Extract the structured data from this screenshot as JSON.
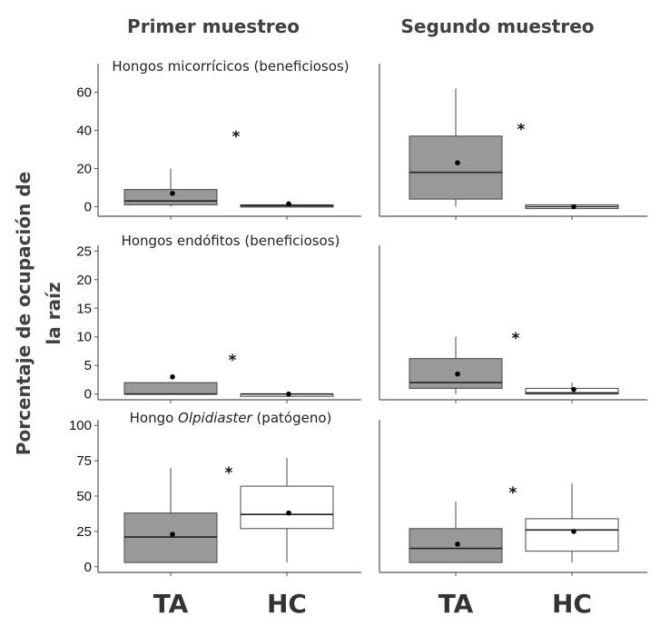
{
  "chart_data": {
    "type": "box",
    "column_titles": [
      "Primer muestreo",
      "Segundo muestreo"
    ],
    "ylabel": [
      "Porcentaje de ocupación de",
      "la raíz"
    ],
    "categories": [
      "TA",
      "HC"
    ],
    "colors": {
      "TA": "#999999",
      "HC": "#ffffff"
    },
    "panels": [
      {
        "title": [
          "Hongos micorrícicos (beneficiosos)"
        ],
        "sample": "Primer muestreo",
        "ylim": [
          -5,
          75
        ],
        "yticks": [
          0,
          20,
          40,
          60
        ],
        "significance": "*",
        "boxes": [
          {
            "group": "TA",
            "min": 0,
            "q1": 1,
            "median": 3,
            "q3": 9,
            "max": 20,
            "mean": 7
          },
          {
            "group": "HC",
            "min": 0,
            "q1": 0,
            "median": 0.5,
            "q3": 1,
            "max": 1,
            "mean": 1.5
          }
        ]
      },
      {
        "title": [],
        "sample": "Segundo muestreo",
        "ylim": [
          -5,
          75
        ],
        "significance": "*",
        "boxes": [
          {
            "group": "TA",
            "min": 0,
            "q1": 4,
            "median": 18,
            "q3": 37,
            "max": 62,
            "mean": 23
          },
          {
            "group": "HC",
            "min": -1,
            "q1": -1,
            "median": 0,
            "q3": 1,
            "max": 1,
            "mean": 0
          }
        ]
      },
      {
        "title": [
          "Hongos endófitos (beneficiosos)"
        ],
        "sample": "Primer muestreo",
        "ylim": [
          -1,
          26
        ],
        "yticks": [
          0,
          5,
          10,
          15,
          20,
          25
        ],
        "significance": "*",
        "boxes": [
          {
            "group": "TA",
            "min": 0,
            "q1": 0,
            "median": 0,
            "q3": 2,
            "max": 2,
            "mean": 3
          },
          {
            "group": "HC",
            "min": 0,
            "q1": 0,
            "median": 0,
            "q3": 0,
            "max": 0,
            "mean": 0
          }
        ]
      },
      {
        "title": [],
        "sample": "Segundo muestreo",
        "ylim": [
          -1,
          26
        ],
        "significance": "*",
        "boxes": [
          {
            "group": "TA",
            "min": 0,
            "q1": 1,
            "median": 2,
            "q3": 6.2,
            "max": 10,
            "mean": 3.5
          },
          {
            "group": "HC",
            "min": 0,
            "q1": 0,
            "median": 0.2,
            "q3": 1,
            "max": 2,
            "mean": 0.8
          }
        ]
      },
      {
        "title": [
          "Hongo ",
          "Olpidiaster",
          " (patógeno)"
        ],
        "sample": "Primer muestreo",
        "ylim": [
          -4,
          104
        ],
        "yticks": [
          0,
          25,
          50,
          75,
          100
        ],
        "significance": "*",
        "boxes": [
          {
            "group": "TA",
            "min": 3,
            "q1": 3,
            "median": 21,
            "q3": 38,
            "max": 70,
            "mean": 23
          },
          {
            "group": "HC",
            "min": 3,
            "q1": 27,
            "median": 37,
            "q3": 57,
            "max": 77,
            "mean": 38
          }
        ]
      },
      {
        "title": [],
        "sample": "Segundo muestreo",
        "ylim": [
          -4,
          104
        ],
        "significance": "*",
        "boxes": [
          {
            "group": "TA",
            "min": 3,
            "q1": 3,
            "median": 13,
            "q3": 27,
            "max": 46,
            "mean": 16
          },
          {
            "group": "HC",
            "min": 3,
            "q1": 11,
            "median": 26,
            "q3": 34,
            "max": 59,
            "mean": 25
          }
        ]
      }
    ]
  }
}
